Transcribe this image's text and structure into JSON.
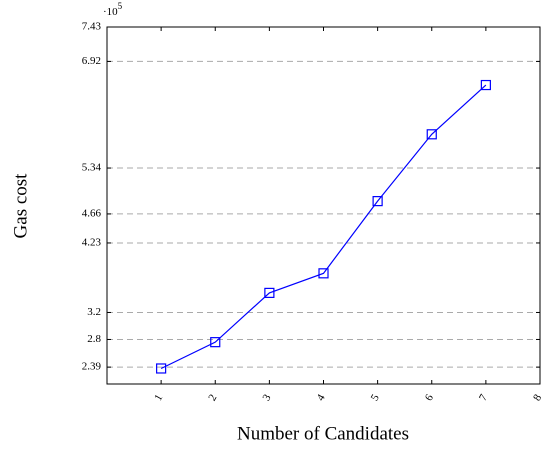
{
  "chart_data": {
    "type": "line",
    "x_label": "Number of Candidates",
    "y_label": "Gas cost",
    "y_multiplier_base": "·10",
    "y_multiplier_exponent": "5",
    "x": [
      1,
      2,
      3,
      4,
      5,
      6,
      7
    ],
    "series": [
      {
        "color": "#0000ff",
        "marker": "square",
        "values": [
          2.37,
          2.76,
          3.49,
          3.78,
          4.85,
          5.84,
          6.57
        ]
      }
    ],
    "xlim": [
      0,
      8
    ],
    "xticks": [
      1,
      2,
      3,
      4,
      5,
      6,
      7,
      8
    ],
    "ylim": [
      2.14,
      7.43
    ],
    "yticks": [
      2.39,
      2.8,
      3.2,
      4.23,
      4.66,
      5.34,
      6.92,
      7.43
    ],
    "grid": "y-dashed"
  }
}
